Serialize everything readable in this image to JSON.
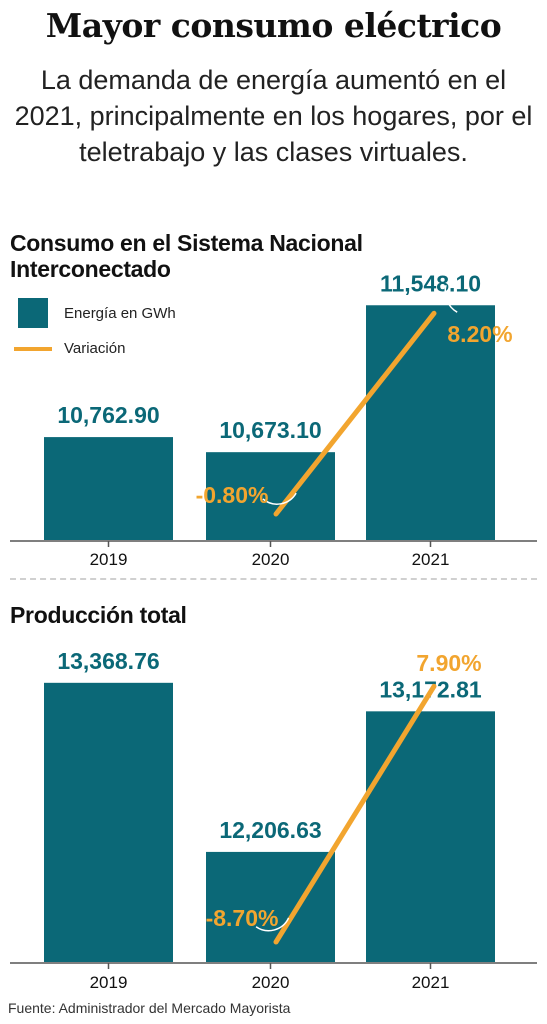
{
  "header": {
    "title": "Mayor consumo eléctrico",
    "subtitle": "La demanda de energía aumentó en el 2021, principalmente en los hogares, por el teletrabajo y las clases virtuales."
  },
  "legend": {
    "energy_label": "Energía en GWh",
    "variation_label": "Variación"
  },
  "colors": {
    "bar": "#0b6877",
    "line": "#f2a52f"
  },
  "source": "Fuente: Administrador del Mercado Mayorista",
  "chart_data": [
    {
      "type": "bar",
      "title": "Consumo en el Sistema Nacional Interconectado",
      "categories": [
        "2019",
        "2020",
        "2021"
      ],
      "series": [
        {
          "name": "Energía en GWh",
          "values": [
            10762.9,
            10673.1,
            11548.1
          ],
          "labels": [
            "10,762.90",
            "10,673.10",
            "11,548.10"
          ]
        },
        {
          "name": "Variación",
          "type": "line",
          "values": [
            null,
            -0.8,
            8.2
          ],
          "labels": [
            "",
            "-0.80%",
            "8.20%"
          ]
        }
      ]
    },
    {
      "type": "bar",
      "title": "Producción total",
      "categories": [
        "2019",
        "2020",
        "2021"
      ],
      "series": [
        {
          "name": "Energía en GWh",
          "values": [
            13368.76,
            12206.63,
            13172.81
          ],
          "labels": [
            "13,368.76",
            "12,206.63",
            "13,172.81"
          ]
        },
        {
          "name": "Variación",
          "type": "line",
          "values": [
            null,
            -8.7,
            7.9
          ],
          "labels": [
            "",
            "-8.70%",
            "7.90%"
          ]
        }
      ]
    }
  ]
}
